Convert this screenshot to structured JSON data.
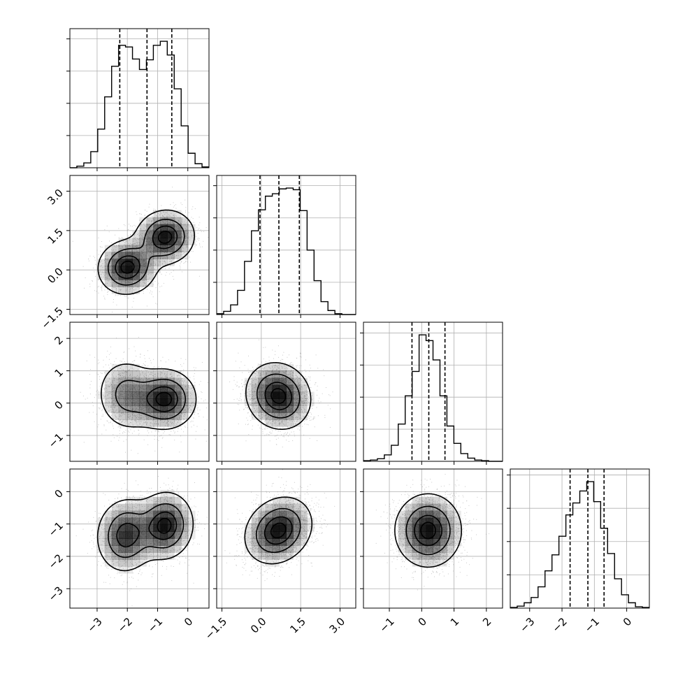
{
  "chart_data": {
    "type": "corner",
    "variables": [
      {
        "range": [
          -3.9,
          0.7
        ],
        "ticks": [
          -3,
          -2,
          -1,
          0
        ],
        "tick_labels": [
          "−3",
          "−2",
          "−1",
          "0"
        ],
        "quantiles": [
          -2.25,
          -1.35,
          -0.53
        ]
      },
      {
        "range": [
          -1.7,
          3.6
        ],
        "ticks": [
          -1.5,
          0.0,
          1.5,
          3.0
        ],
        "tick_labels": [
          "−1.5",
          "0.0",
          "1.5",
          "3.0"
        ],
        "quantiles": [
          -0.05,
          0.67,
          1.45
        ]
      },
      {
        "range": [
          -1.8,
          2.5
        ],
        "ticks": [
          -1,
          0,
          1,
          2
        ],
        "tick_labels": [
          "−1",
          "0",
          "1",
          "2"
        ],
        "quantiles": [
          -0.3,
          0.22,
          0.72
        ]
      },
      {
        "range": [
          -3.6,
          0.7
        ],
        "ticks": [
          -3,
          -2,
          -1,
          0
        ],
        "tick_labels": [
          "−3",
          "−2",
          "−1",
          "0"
        ],
        "quantiles": [
          -1.75,
          -1.2,
          -0.7
        ]
      }
    ],
    "histograms": [
      {
        "bin_edges": [
          -3.9,
          -3.67,
          -3.44,
          -3.21,
          -2.98,
          -2.75,
          -2.52,
          -2.29,
          -2.06,
          -1.83,
          -1.6,
          -1.37,
          -1.14,
          -0.91,
          -0.68,
          -0.45,
          -0.22,
          0.01,
          0.24,
          0.47,
          0.7
        ],
        "counts": [
          0,
          2,
          6,
          20,
          48,
          88,
          126,
          152,
          150,
          135,
          122,
          134,
          152,
          157,
          140,
          98,
          52,
          18,
          5,
          1
        ]
      },
      {
        "bin_edges": [
          -1.7,
          -1.435,
          -1.17,
          -0.905,
          -0.64,
          -0.375,
          -0.11,
          0.155,
          0.42,
          0.685,
          0.95,
          1.215,
          1.48,
          1.745,
          2.01,
          2.275,
          2.54,
          2.805,
          3.07,
          3.335,
          3.6
        ],
        "counts": [
          1,
          4,
          12,
          30,
          66,
          104,
          130,
          147,
          150,
          156,
          157,
          155,
          129,
          80,
          42,
          16,
          5,
          1,
          0,
          0
        ]
      },
      {
        "bin_edges": [
          -1.8,
          -1.585,
          -1.37,
          -1.155,
          -0.94,
          -0.725,
          -0.51,
          -0.295,
          -0.08,
          0.135,
          0.35,
          0.565,
          0.78,
          0.995,
          1.21,
          1.425,
          1.64,
          1.855,
          2.07,
          2.285,
          2.5
        ],
        "counts": [
          1,
          2,
          4,
          10,
          25,
          58,
          102,
          140,
          197,
          188,
          158,
          102,
          55,
          28,
          12,
          5,
          2,
          1,
          0,
          0
        ]
      },
      {
        "bin_edges": [
          -3.6,
          -3.385,
          -3.17,
          -2.955,
          -2.74,
          -2.525,
          -2.31,
          -2.095,
          -1.88,
          -1.665,
          -1.45,
          -1.235,
          -1.02,
          -0.805,
          -0.59,
          -0.375,
          -0.16,
          0.055,
          0.27,
          0.485,
          0.7
        ],
        "counts": [
          1,
          3,
          8,
          16,
          32,
          56,
          80,
          108,
          140,
          158,
          176,
          190,
          160,
          120,
          82,
          44,
          20,
          8,
          2,
          1
        ]
      }
    ],
    "pairs": [
      {
        "x_var": 0,
        "y_var": 1,
        "components": [
          {
            "mx": -2.0,
            "my": 0.1,
            "sx": 0.47,
            "sy": 0.5,
            "rho": 0.05,
            "w": 0.5
          },
          {
            "mx": -0.75,
            "my": 1.25,
            "sx": 0.47,
            "sy": 0.5,
            "rho": 0.05,
            "w": 0.5
          }
        ]
      },
      {
        "x_var": 0,
        "y_var": 2,
        "components": [
          {
            "mx": -2.0,
            "my": 0.25,
            "sx": 0.5,
            "sy": 0.55,
            "rho": -0.05,
            "w": 0.4
          },
          {
            "mx": -0.75,
            "my": 0.12,
            "sx": 0.5,
            "sy": 0.45,
            "rho": 0.0,
            "w": 0.6
          }
        ]
      },
      {
        "x_var": 1,
        "y_var": 2,
        "components": [
          {
            "mx": 0.65,
            "my": 0.22,
            "sx": 0.6,
            "sy": 0.5,
            "rho": -0.1,
            "w": 1.0
          }
        ]
      },
      {
        "x_var": 0,
        "y_var": 3,
        "components": [
          {
            "mx": -2.05,
            "my": -1.35,
            "sx": 0.47,
            "sy": 0.55,
            "rho": 0.05,
            "w": 0.5
          },
          {
            "mx": -0.75,
            "my": -1.05,
            "sx": 0.45,
            "sy": 0.5,
            "rho": 0.05,
            "w": 0.5
          }
        ]
      },
      {
        "x_var": 1,
        "y_var": 3,
        "components": [
          {
            "mx": 0.65,
            "my": -1.2,
            "sx": 0.62,
            "sy": 0.5,
            "rho": 0.2,
            "w": 1.0
          }
        ]
      },
      {
        "x_var": 2,
        "y_var": 3,
        "components": [
          {
            "mx": 0.2,
            "my": -1.2,
            "sx": 0.5,
            "sy": 0.55,
            "rho": 0.0,
            "w": 1.0
          }
        ]
      }
    ],
    "density_levels": [
      0.12,
      0.4,
      0.7,
      0.9
    ],
    "grid": true,
    "colors": {
      "line": "#000000",
      "grid": "#b0b0b0",
      "scatter": "#888888",
      "fill": "#000000"
    }
  }
}
